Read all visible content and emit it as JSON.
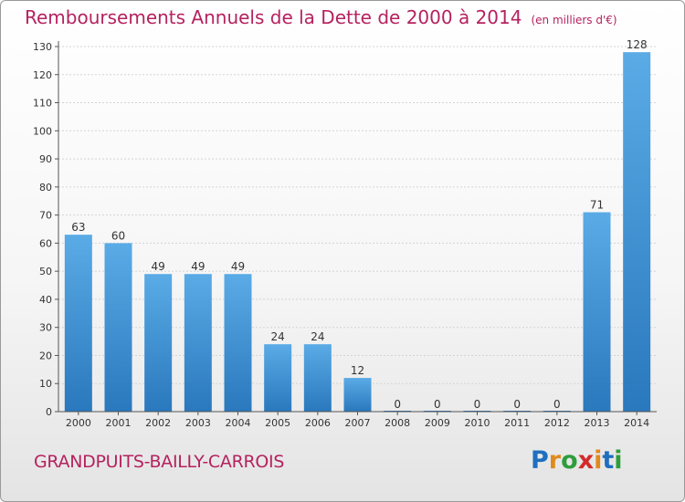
{
  "header": {
    "title": "Remboursements Annuels de la Dette de 2000 à 2014",
    "subtitle": "(en milliers d'€)"
  },
  "footer": {
    "commune": "GRANDPUITS-BAILLY-CARROIS",
    "logo_text": "Proxiti"
  },
  "colors": {
    "bar_top": "#5aabe6",
    "bar_bottom": "#2a78bd",
    "title": "#b5225f"
  },
  "chart_data": {
    "type": "bar",
    "title": "Remboursements Annuels de la Dette de 2000 à 2014",
    "subtitle": "(en milliers d'€)",
    "categories": [
      "2000",
      "2001",
      "2002",
      "2003",
      "2004",
      "2005",
      "2006",
      "2007",
      "2008",
      "2009",
      "2010",
      "2011",
      "2012",
      "2013",
      "2014"
    ],
    "values": [
      63,
      60,
      49,
      49,
      49,
      24,
      24,
      12,
      0,
      0,
      0,
      0,
      0,
      71,
      128
    ],
    "ylim": [
      0,
      130
    ],
    "yticks": [
      0,
      10,
      20,
      30,
      40,
      50,
      60,
      70,
      80,
      90,
      100,
      110,
      120,
      130
    ],
    "grid": true,
    "legend": "none"
  }
}
